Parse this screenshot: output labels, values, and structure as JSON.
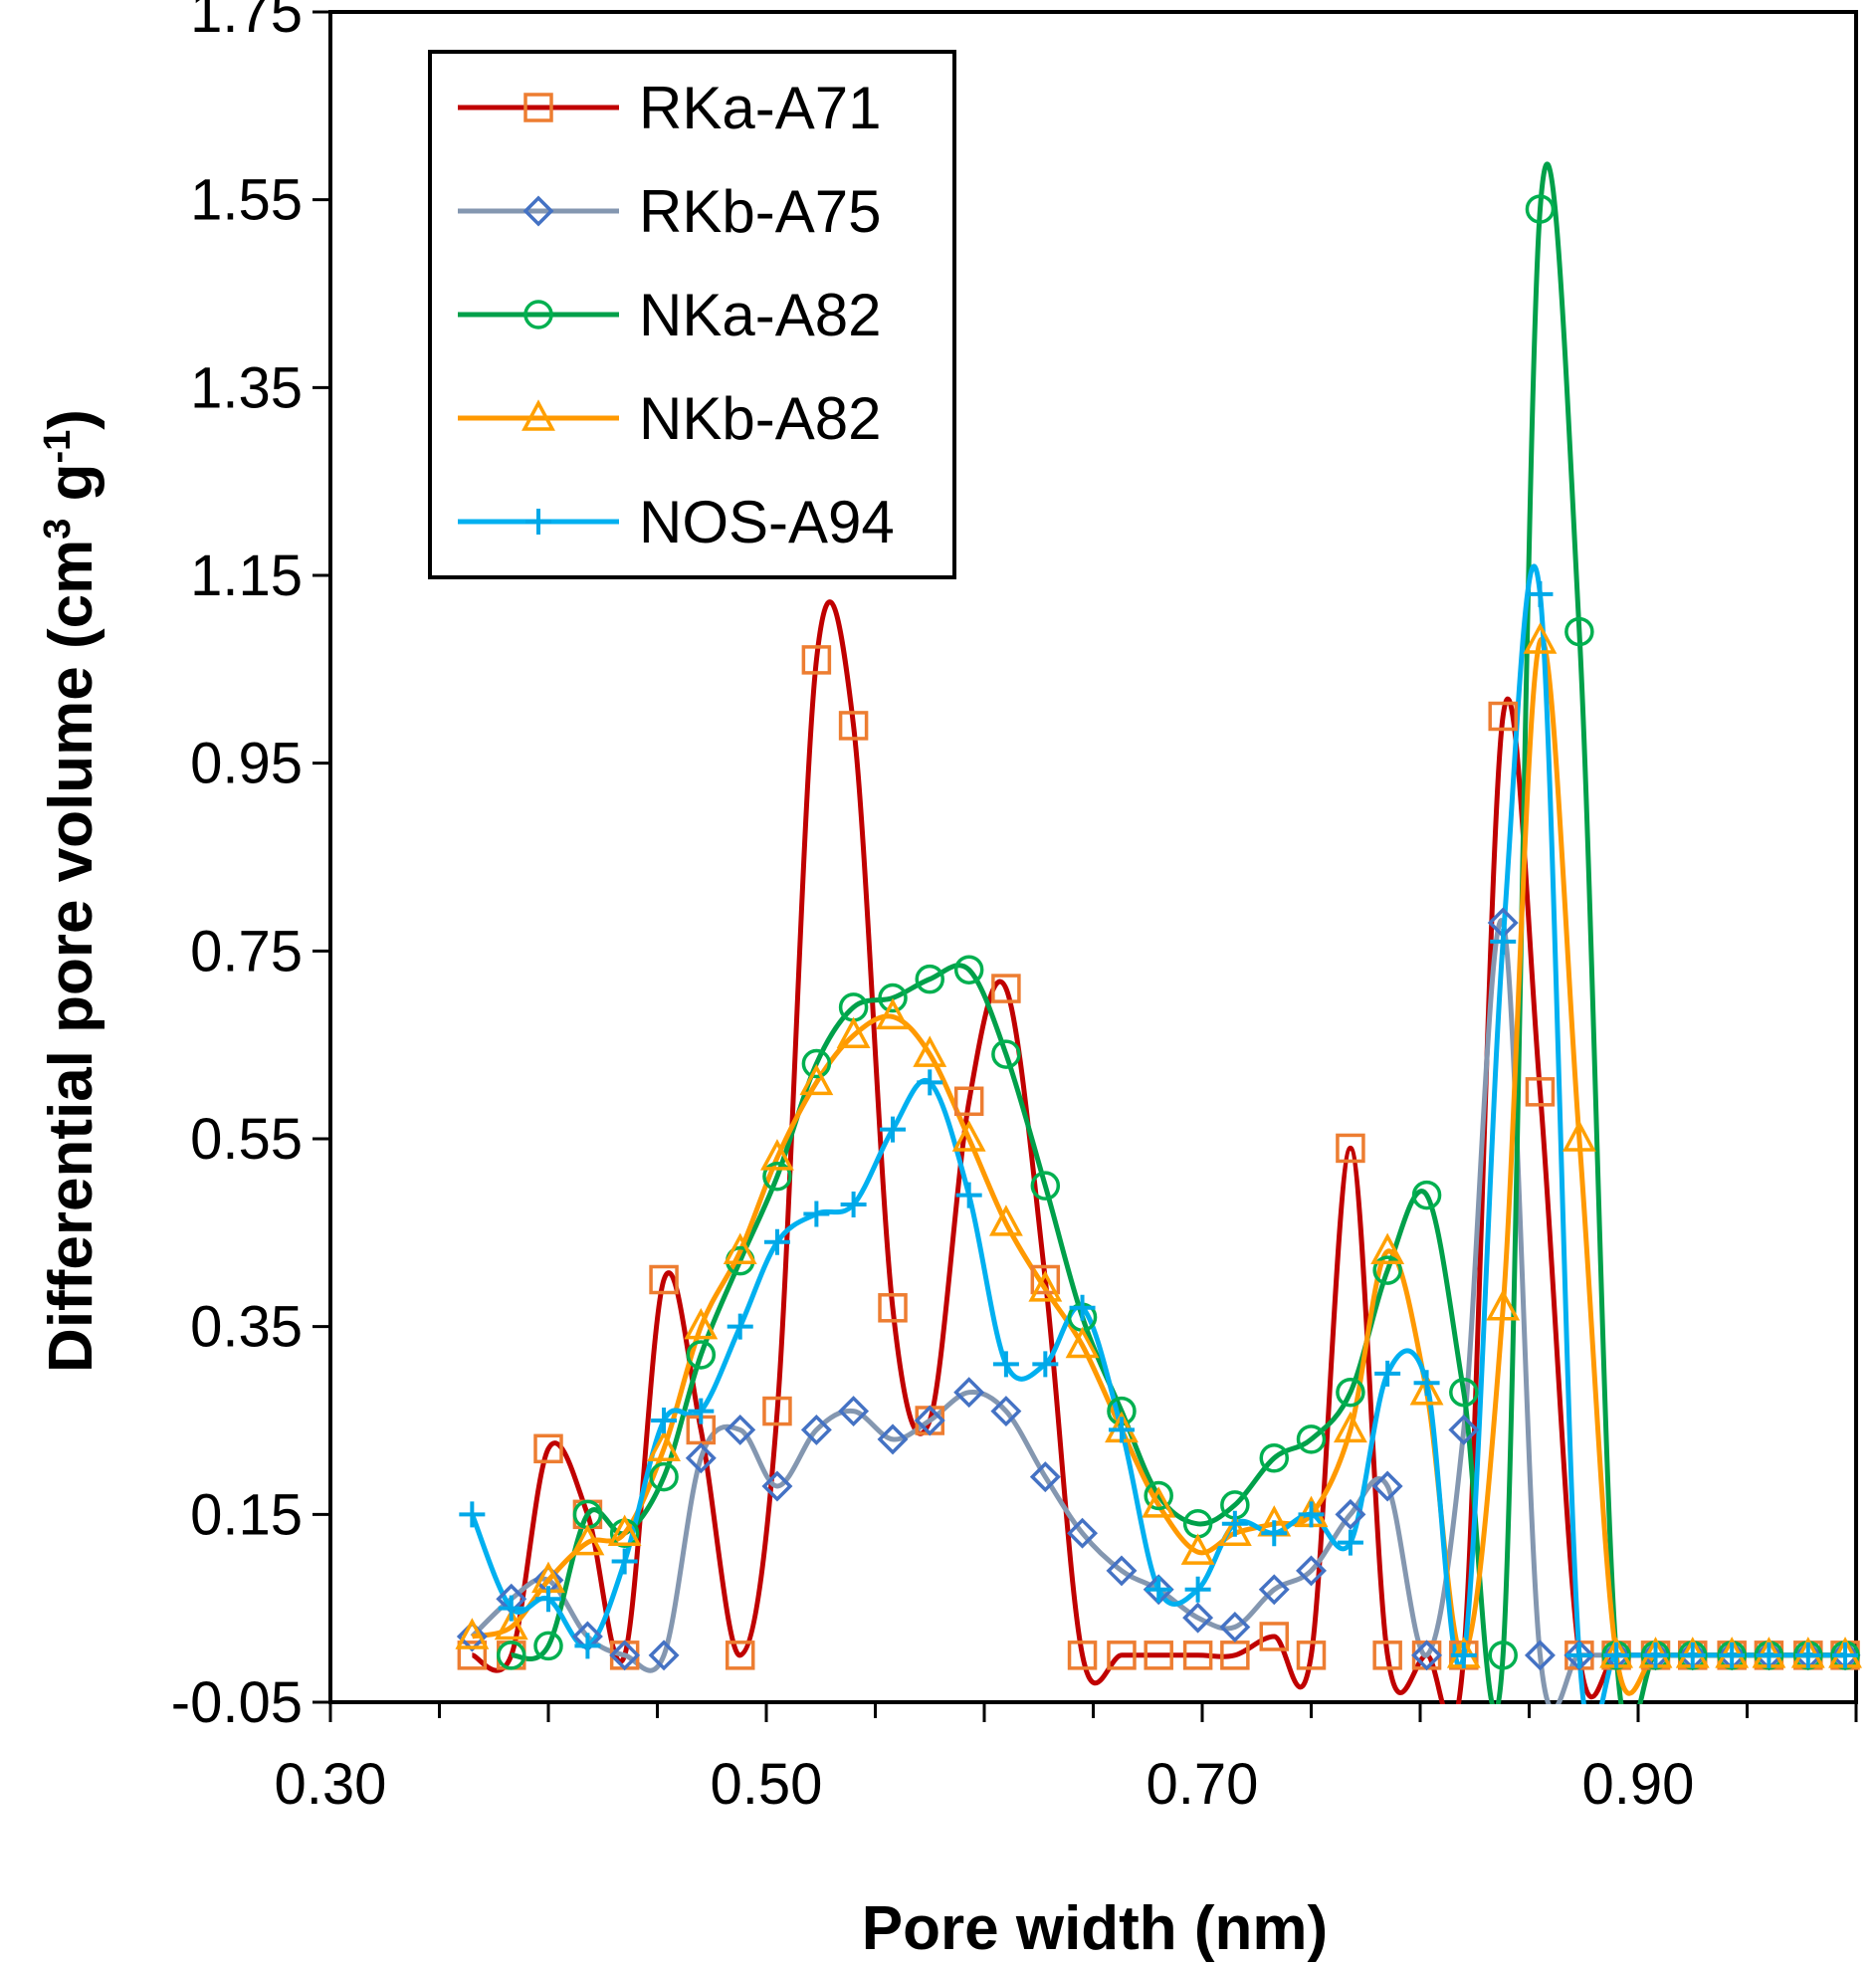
{
  "chart_data": {
    "type": "line",
    "title": "",
    "xlabel": "Pore width (nm)",
    "ylabel_main": "Differential pore volume (cm",
    "ylabel_sup1": "3",
    "ylabel_mid": " g",
    "ylabel_sup2": "-1",
    "ylabel_end": ")",
    "xlim": [
      0.3,
      1.0
    ],
    "ylim": [
      -0.05,
      1.75
    ],
    "x_ticks": [
      0.3,
      0.5,
      0.7,
      0.9
    ],
    "x_tick_labels": [
      "0.30",
      "0.50",
      "0.70",
      "0.90"
    ],
    "y_ticks": [
      -0.05,
      0.15,
      0.35,
      0.55,
      0.75,
      0.95,
      1.15,
      1.35,
      1.55,
      1.75
    ],
    "y_tick_labels": [
      "-0.05",
      "0.15",
      "0.35",
      "0.55",
      "0.75",
      "0.95",
      "1.15",
      "1.35",
      "1.55",
      "1.75"
    ],
    "legend_position": "top-left",
    "series": [
      {
        "name": "RKa-A71",
        "color": "#c00000",
        "marker": "square",
        "marker_color": "#ed7d31",
        "x": [
          0.365,
          0.383,
          0.4,
          0.418,
          0.435,
          0.453,
          0.47,
          0.488,
          0.505,
          0.523,
          0.54,
          0.558,
          0.575,
          0.593,
          0.61,
          0.628,
          0.645,
          0.663,
          0.68,
          0.698,
          0.715,
          0.733,
          0.75,
          0.768,
          0.785,
          0.803,
          0.82,
          0.838,
          0.855,
          0.873,
          0.89,
          0.908,
          0.925,
          0.943,
          0.96,
          0.978,
          0.995
        ],
        "y": [
          0.0,
          0.0,
          0.22,
          0.15,
          0.0,
          0.4,
          0.24,
          0.0,
          0.26,
          1.06,
          0.99,
          0.37,
          0.25,
          0.59,
          0.71,
          0.4,
          0.0,
          0.0,
          0.0,
          0.0,
          0.0,
          0.02,
          0.0,
          0.54,
          0.0,
          0.0,
          0.0,
          1.0,
          0.6,
          0.0,
          0.0,
          0.0,
          0.0,
          0.0,
          0.0,
          0.0,
          0.0
        ]
      },
      {
        "name": "RKb-A75",
        "color": "#8497b0",
        "marker": "diamond",
        "marker_color": "#4472c4",
        "x": [
          0.365,
          0.383,
          0.4,
          0.418,
          0.435,
          0.453,
          0.47,
          0.488,
          0.505,
          0.523,
          0.54,
          0.558,
          0.575,
          0.593,
          0.61,
          0.628,
          0.645,
          0.663,
          0.68,
          0.698,
          0.715,
          0.733,
          0.75,
          0.768,
          0.785,
          0.803,
          0.82,
          0.838,
          0.855,
          0.873,
          0.89,
          0.908,
          0.925,
          0.943,
          0.96,
          0.978,
          0.995
        ],
        "y": [
          0.02,
          0.06,
          0.08,
          0.02,
          0.0,
          0.0,
          0.21,
          0.24,
          0.18,
          0.24,
          0.26,
          0.23,
          0.25,
          0.28,
          0.26,
          0.19,
          0.13,
          0.09,
          0.07,
          0.04,
          0.03,
          0.07,
          0.09,
          0.15,
          0.18,
          0.0,
          0.24,
          0.78,
          0.0,
          0.0,
          0.0,
          0.0,
          0.0,
          0.0,
          0.0,
          0.0,
          0.0
        ]
      },
      {
        "name": "NKa-A82",
        "color": "#00a04a",
        "marker": "circle",
        "marker_color": "#00b050",
        "x": [
          0.383,
          0.4,
          0.418,
          0.435,
          0.453,
          0.47,
          0.488,
          0.505,
          0.523,
          0.54,
          0.558,
          0.575,
          0.593,
          0.61,
          0.628,
          0.645,
          0.663,
          0.68,
          0.698,
          0.715,
          0.733,
          0.75,
          0.768,
          0.785,
          0.803,
          0.82,
          0.838,
          0.855,
          0.873,
          0.89,
          0.908,
          0.925,
          0.943,
          0.96,
          0.978,
          0.995
        ],
        "y": [
          0.0,
          0.01,
          0.15,
          0.13,
          0.19,
          0.32,
          0.42,
          0.51,
          0.63,
          0.69,
          0.7,
          0.72,
          0.73,
          0.64,
          0.5,
          0.36,
          0.26,
          0.17,
          0.14,
          0.16,
          0.21,
          0.23,
          0.28,
          0.41,
          0.49,
          0.28,
          0.0,
          1.54,
          1.09,
          0.0,
          0.0,
          0.0,
          0.0,
          0.0,
          0.0,
          0.0
        ]
      },
      {
        "name": "NKb-A82",
        "color": "#ff9900",
        "marker": "triangle",
        "marker_color": "#ffa000",
        "x": [
          0.365,
          0.383,
          0.4,
          0.418,
          0.435,
          0.453,
          0.47,
          0.488,
          0.505,
          0.523,
          0.54,
          0.558,
          0.575,
          0.593,
          0.61,
          0.628,
          0.645,
          0.663,
          0.68,
          0.698,
          0.715,
          0.733,
          0.75,
          0.768,
          0.785,
          0.803,
          0.82,
          0.838,
          0.855,
          0.873,
          0.89,
          0.908,
          0.925,
          0.943,
          0.96,
          0.978,
          0.995
        ],
        "y": [
          0.02,
          0.03,
          0.08,
          0.12,
          0.13,
          0.22,
          0.35,
          0.43,
          0.53,
          0.61,
          0.66,
          0.68,
          0.64,
          0.55,
          0.46,
          0.39,
          0.33,
          0.24,
          0.16,
          0.11,
          0.13,
          0.14,
          0.15,
          0.24,
          0.43,
          0.28,
          0.0,
          0.37,
          1.08,
          0.55,
          0.0,
          0.0,
          0.0,
          0.0,
          0.0,
          0.0,
          0.0
        ]
      },
      {
        "name": "NOS-A94",
        "color": "#00b0f0",
        "marker": "plus",
        "marker_color": "#00a8e8",
        "x": [
          0.365,
          0.383,
          0.4,
          0.418,
          0.435,
          0.453,
          0.47,
          0.488,
          0.505,
          0.523,
          0.54,
          0.558,
          0.575,
          0.593,
          0.61,
          0.628,
          0.645,
          0.663,
          0.68,
          0.698,
          0.715,
          0.733,
          0.75,
          0.768,
          0.785,
          0.803,
          0.82,
          0.838,
          0.855,
          0.873,
          0.89,
          0.908,
          0.925,
          0.943,
          0.96,
          0.978,
          0.995
        ],
        "y": [
          0.15,
          0.05,
          0.06,
          0.01,
          0.1,
          0.25,
          0.26,
          0.35,
          0.44,
          0.47,
          0.48,
          0.56,
          0.61,
          0.49,
          0.31,
          0.31,
          0.37,
          0.24,
          0.07,
          0.07,
          0.14,
          0.13,
          0.15,
          0.12,
          0.3,
          0.29,
          0.0,
          0.76,
          1.13,
          0.0,
          0.0,
          0.0,
          0.0,
          0.0,
          0.0,
          0.0,
          0.0
        ]
      }
    ]
  }
}
